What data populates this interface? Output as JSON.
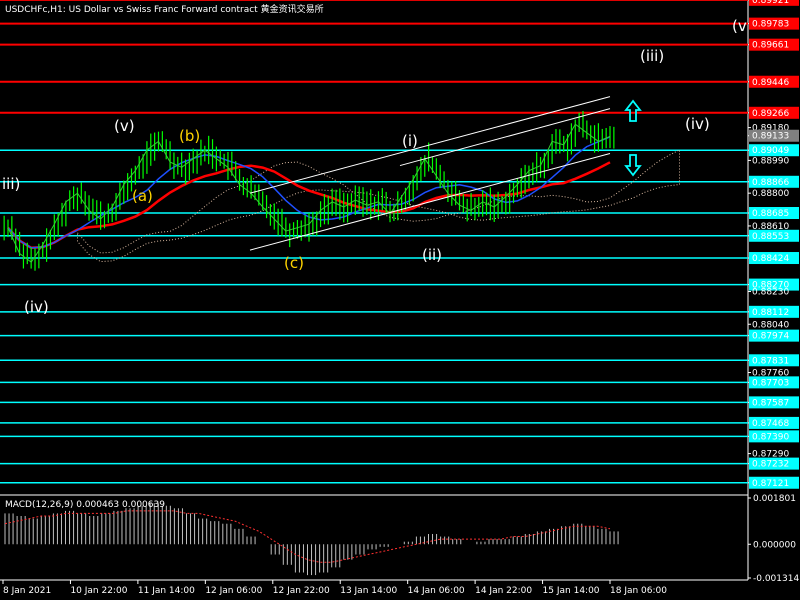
{
  "header": {
    "title": "USDCHFc,H1: US Dollar vs Swiss Franc Forward contract 黄金资讯交易所"
  },
  "chart_data": {
    "type": "line",
    "symbol": "USDCHFc",
    "timeframe": "H1",
    "price_axis": {
      "range": [
        0.8705,
        0.8992
      ],
      "ticks": [
        "0.89921",
        "0.89783",
        "0.89661",
        "0.89446",
        "0.89266",
        "0.89180",
        "0.89133",
        "0.89049",
        "0.88990",
        "0.88866",
        "0.88800",
        "0.88685",
        "0.88610",
        "0.88553",
        "0.88424",
        "0.88270",
        "0.88230",
        "0.88112",
        "0.88040",
        "0.87974",
        "0.87831",
        "0.87760",
        "0.87703",
        "0.87587",
        "0.87468",
        "0.87390",
        "0.87290",
        "0.87232",
        "0.87121"
      ]
    },
    "levels": {
      "red": [
        0.89921,
        0.89783,
        0.89661,
        0.89446,
        0.89266
      ],
      "cyan": [
        0.89049,
        0.88866,
        0.88685,
        0.88553,
        0.88424,
        0.8827,
        0.88112,
        0.87974,
        0.87831,
        0.87703,
        0.87587,
        0.87468,
        0.8739,
        0.87232,
        0.87121
      ]
    },
    "price_labels_highlighted": {
      "red": [
        "0.89921",
        "0.89783",
        "0.89661",
        "0.89446",
        "0.89266"
      ],
      "cyan": [
        "0.89049",
        "0.88866",
        "0.88685",
        "0.88553",
        "0.88424",
        "0.88270",
        "0.88112",
        "0.87974",
        "0.87831",
        "0.87703",
        "0.87587",
        "0.87468",
        "0.87390",
        "0.87232",
        "0.87121"
      ],
      "gray": [
        "0.89133"
      ]
    },
    "x_ticks": [
      "8 Jan 2021",
      "10 Jan 22:00",
      "11 Jan 14:00",
      "12 Jan 06:00",
      "12 Jan 22:00",
      "13 Jan 14:00",
      "14 Jan 06:00",
      "14 Jan 22:00",
      "15 Jan 14:00",
      "18 Jan 06:00"
    ],
    "price_close": [
      0.886,
      0.8845,
      0.884,
      0.885,
      0.8862,
      0.8875,
      0.888,
      0.887,
      0.8865,
      0.8872,
      0.8885,
      0.8893,
      0.8905,
      0.891,
      0.8898,
      0.8895,
      0.89,
      0.8905,
      0.89,
      0.8895,
      0.8885,
      0.888,
      0.8872,
      0.8865,
      0.8858,
      0.886,
      0.8862,
      0.887,
      0.8875,
      0.8872,
      0.8876,
      0.8873,
      0.8875,
      0.8868,
      0.8878,
      0.8888,
      0.89,
      0.889,
      0.888,
      0.8873,
      0.887,
      0.8875,
      0.8872,
      0.8878,
      0.8885,
      0.8893,
      0.8896,
      0.891,
      0.8908,
      0.892,
      0.8915,
      0.891,
      0.8913
    ],
    "wave_labels": [
      {
        "text": "iii)",
        "color": "white",
        "price": 0.88866
      },
      {
        "text": "(iv)",
        "color": "white",
        "price": 0.8823
      },
      {
        "text": "(v)",
        "color": "white",
        "price": 0.89266
      },
      {
        "text": "(b)",
        "color": "yellow",
        "price": 0.892
      },
      {
        "text": "(a)",
        "color": "yellow",
        "price": 0.888
      },
      {
        "text": "(c)",
        "color": "yellow",
        "price": 0.88424
      },
      {
        "text": "(i)",
        "color": "white",
        "price": 0.8918
      },
      {
        "text": "(ii)",
        "color": "white",
        "price": 0.88553
      },
      {
        "text": "(iii)",
        "color": "white",
        "price": 0.89661
      },
      {
        "text": "(iv)",
        "color": "white",
        "price": 0.89266
      },
      {
        "text": "(v",
        "color": "white",
        "price": 0.899
      }
    ],
    "macd": {
      "label": "MACD(12,26,9) 0.000463 0.000639",
      "ticks": [
        "0.001801",
        "0.000000",
        "-0.001314"
      ],
      "range": [
        -0.001314,
        0.001801
      ],
      "histogram": [
        0.0012,
        0.0011,
        0.001,
        0.0011,
        0.0012,
        0.0013,
        0.0012,
        0.0011,
        0.0012,
        0.0013,
        0.0014,
        0.0015,
        0.0016,
        0.0015,
        0.0014,
        0.0012,
        0.001,
        0.0009,
        0.0008,
        0.0006,
        0.0003,
        0.0,
        -0.0004,
        -0.0008,
        -0.0011,
        -0.0012,
        -0.0011,
        -0.0009,
        -0.0006,
        -0.0004,
        -0.0002,
        -0.0001,
        0.0,
        0.0001,
        0.0003,
        0.0004,
        0.0003,
        0.0002,
        0.0,
        0.0001,
        0.0002,
        0.0002,
        0.0003,
        0.0004,
        0.0005,
        0.0006,
        0.0007,
        0.0008,
        0.0007,
        0.0006,
        0.0005
      ],
      "signal": [
        0.0008,
        0.0009,
        0.001,
        0.0011,
        0.0011,
        0.0012,
        0.0012,
        0.0012,
        0.0012,
        0.0012,
        0.0013,
        0.0013,
        0.0013,
        0.0013,
        0.0013,
        0.0012,
        0.0012,
        0.0011,
        0.001,
        0.0009,
        0.0007,
        0.0005,
        0.0002,
        -0.0001,
        -0.0004,
        -0.0006,
        -0.0007,
        -0.0007,
        -0.0006,
        -0.0005,
        -0.0004,
        -0.0003,
        -0.0002,
        -0.0001,
        0.0,
        0.0001,
        0.0002,
        0.0002,
        0.0002,
        0.0002,
        0.0002,
        0.0002,
        0.0003,
        0.0003,
        0.0004,
        0.0005,
        0.0006,
        0.0007,
        0.0007,
        0.0007,
        0.0006
      ]
    },
    "colors": {
      "background": "#000000",
      "candle": "#00ff00",
      "red_level": "#ff0000",
      "cyan_level": "#00ffff",
      "ma_red": "#ff0000",
      "ma_blue": "#1e50ff",
      "ma_green": "#33cc33",
      "channel": "#ffffff",
      "wave_white": "#ffffff",
      "wave_yellow": "#ffd400",
      "arrow": "#00ffff",
      "macd_hist": "#c0c0c0",
      "macd_signal": "#ff3030"
    }
  }
}
